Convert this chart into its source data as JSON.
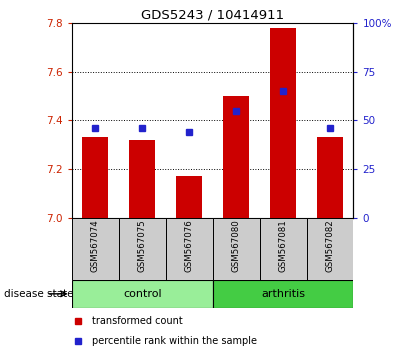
{
  "title": "GDS5243 / 10414911",
  "samples": [
    "GSM567074",
    "GSM567075",
    "GSM567076",
    "GSM567080",
    "GSM567081",
    "GSM567082"
  ],
  "bar_values": [
    7.33,
    7.32,
    7.17,
    7.5,
    7.78,
    7.33
  ],
  "percentile_values": [
    46,
    46,
    44,
    55,
    65,
    46
  ],
  "ylim_left": [
    7.0,
    7.8
  ],
  "ylim_right": [
    0,
    100
  ],
  "yticks_left": [
    7.0,
    7.2,
    7.4,
    7.6,
    7.8
  ],
  "yticks_right": [
    0,
    25,
    50,
    75,
    100
  ],
  "bar_color": "#cc0000",
  "percentile_color": "#2222cc",
  "control_color": "#99ee99",
  "arthritis_color": "#44cc44",
  "sample_bg_color": "#cccccc",
  "group_label": "disease state",
  "legend_bar": "transformed count",
  "legend_pct": "percentile rank within the sample",
  "left_tick_color": "#cc2200",
  "right_tick_color": "#2222cc",
  "grid_yticks": [
    7.2,
    7.4,
    7.6
  ]
}
